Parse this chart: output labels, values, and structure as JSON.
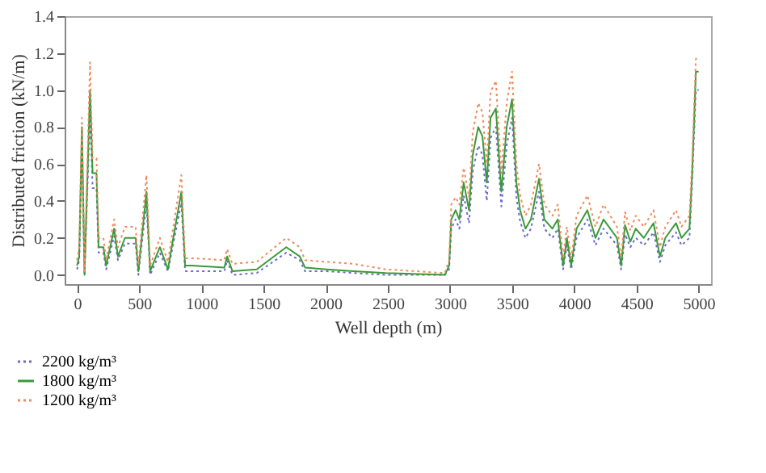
{
  "chart_data": {
    "type": "line",
    "xlabel": "Well depth (m)",
    "ylabel": "Distributed friction (kN/m)",
    "xlim": [
      -100,
      5100
    ],
    "xticks": [
      0,
      500,
      1000,
      1500,
      2000,
      2500,
      3000,
      3500,
      4000,
      4500,
      5000
    ],
    "ylim": [
      -0.05,
      1.4
    ],
    "yticks": [
      {
        "value": 0,
        "label": "0.0"
      },
      {
        "value": 0.2,
        "label": "0.2"
      },
      {
        "value": 0.4,
        "label": "0.4"
      },
      {
        "value": 0.6,
        "label": "0.6"
      },
      {
        "value": 0.8,
        "label": "0.8"
      },
      {
        "value": 1.0,
        "label": "1.0"
      },
      {
        "value": 1.2,
        "label": "1.2"
      },
      {
        "value": 1.4,
        "label": "1.4"
      }
    ],
    "grid": false,
    "legend": "bottom left",
    "marker": "none",
    "x": [
      0,
      17,
      39,
      60,
      104,
      125,
      156,
      173,
      212,
      234,
      298,
      329,
      385,
      471,
      493,
      558,
      588,
      666,
      731,
      774,
      839,
      869,
      926,
      1185,
      1207,
      1250,
      1445,
      1683,
      1791,
      1834,
      2007,
      2223,
      2483,
      2958,
      2993,
      3010,
      3045,
      3075,
      3110,
      3153,
      3183,
      3227,
      3261,
      3296,
      3326,
      3369,
      3413,
      3456,
      3499,
      3534,
      3564,
      3607,
      3651,
      3716,
      3759,
      3824,
      3867,
      3910,
      3940,
      3975,
      4018,
      4105,
      4170,
      4235,
      4343,
      4377,
      4408,
      4451,
      4494,
      4559,
      4637,
      4689,
      4732,
      4818,
      4862,
      4926,
      4948,
      4978,
      5000
    ],
    "series": [
      {
        "name": "2200 kg/m³",
        "color": "#6a6acb",
        "line_style": "dotted",
        "values": [
          0.03,
          0.08,
          0.7,
          0.0,
          0.88,
          0.47,
          0.47,
          0.12,
          0.12,
          0.03,
          0.21,
          0.08,
          0.17,
          0.17,
          0.0,
          0.39,
          0.0,
          0.12,
          0.02,
          0.17,
          0.39,
          0.02,
          0.02,
          0.02,
          0.08,
          0.0,
          0.01,
          0.12,
          0.08,
          0.02,
          0.02,
          0.01,
          0.0,
          0.0,
          0.03,
          0.25,
          0.3,
          0.25,
          0.43,
          0.28,
          0.56,
          0.7,
          0.65,
          0.4,
          0.74,
          0.8,
          0.37,
          0.7,
          0.85,
          0.42,
          0.29,
          0.2,
          0.25,
          0.45,
          0.25,
          0.2,
          0.25,
          0.03,
          0.16,
          0.03,
          0.2,
          0.3,
          0.16,
          0.25,
          0.16,
          0.03,
          0.22,
          0.15,
          0.2,
          0.16,
          0.23,
          0.07,
          0.16,
          0.23,
          0.16,
          0.2,
          0.5,
          1.0,
          1.0
        ]
      },
      {
        "name": "1800 kg/m³",
        "color": "#3a9a3a",
        "line_style": "solid",
        "values": [
          0.05,
          0.1,
          0.8,
          0.0,
          1.0,
          0.55,
          0.55,
          0.15,
          0.15,
          0.05,
          0.25,
          0.1,
          0.2,
          0.2,
          0.02,
          0.45,
          0.02,
          0.15,
          0.03,
          0.2,
          0.45,
          0.05,
          0.05,
          0.04,
          0.1,
          0.02,
          0.03,
          0.15,
          0.1,
          0.04,
          0.03,
          0.02,
          0.01,
          0.0,
          0.05,
          0.3,
          0.35,
          0.3,
          0.5,
          0.35,
          0.65,
          0.8,
          0.75,
          0.5,
          0.85,
          0.9,
          0.45,
          0.8,
          0.95,
          0.5,
          0.35,
          0.25,
          0.3,
          0.52,
          0.3,
          0.25,
          0.3,
          0.05,
          0.2,
          0.05,
          0.25,
          0.35,
          0.2,
          0.3,
          0.2,
          0.05,
          0.27,
          0.18,
          0.25,
          0.2,
          0.28,
          0.1,
          0.2,
          0.28,
          0.2,
          0.25,
          0.55,
          1.1,
          1.1
        ]
      },
      {
        "name": "1200 kg/m³",
        "color": "#f08a5a",
        "line_style": "dotted",
        "values": [
          0.08,
          0.15,
          0.85,
          0.02,
          1.15,
          0.63,
          0.63,
          0.2,
          0.2,
          0.08,
          0.3,
          0.15,
          0.26,
          0.26,
          0.05,
          0.54,
          0.05,
          0.2,
          0.07,
          0.26,
          0.54,
          0.09,
          0.09,
          0.08,
          0.14,
          0.06,
          0.07,
          0.2,
          0.15,
          0.08,
          0.07,
          0.06,
          0.03,
          0.01,
          0.08,
          0.38,
          0.42,
          0.38,
          0.58,
          0.42,
          0.77,
          0.93,
          0.88,
          0.6,
          0.99,
          1.05,
          0.55,
          0.93,
          1.1,
          0.6,
          0.43,
          0.32,
          0.38,
          0.6,
          0.38,
          0.32,
          0.38,
          0.09,
          0.26,
          0.09,
          0.32,
          0.43,
          0.26,
          0.38,
          0.26,
          0.09,
          0.34,
          0.24,
          0.32,
          0.26,
          0.35,
          0.15,
          0.26,
          0.35,
          0.26,
          0.32,
          0.62,
          1.17,
          1.17
        ]
      }
    ]
  }
}
